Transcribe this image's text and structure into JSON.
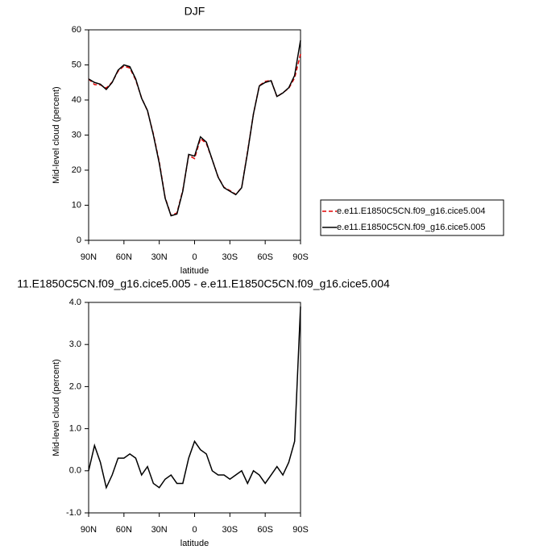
{
  "chart_data": [
    {
      "type": "line",
      "title": "DJF",
      "xlabel": "latitude",
      "ylabel": "Mid-level cloud (percent)",
      "x": [
        90,
        85,
        80,
        75,
        70,
        65,
        60,
        55,
        50,
        45,
        40,
        35,
        30,
        25,
        20,
        15,
        10,
        5,
        0,
        -5,
        -10,
        -15,
        -20,
        -25,
        -30,
        -35,
        -40,
        -45,
        -50,
        -55,
        -60,
        -65,
        -70,
        -75,
        -80,
        -85,
        -90
      ],
      "xlim": [
        90,
        -90
      ],
      "xticks": [
        {
          "value": 90,
          "label": "90N"
        },
        {
          "value": 60,
          "label": "60N"
        },
        {
          "value": 30,
          "label": "30N"
        },
        0,
        {
          "value": -30,
          "label": "30S"
        },
        {
          "value": -60,
          "label": "60S"
        },
        {
          "value": -90,
          "label": "90S"
        }
      ],
      "ylim": [
        0,
        60
      ],
      "yticks": [
        0,
        10,
        20,
        30,
        40,
        50,
        60
      ],
      "legend": "right",
      "series": [
        {
          "name": "e.e11.E1850C5CN.f09_g16.cice5.004",
          "color": "#e00000",
          "dash": true,
          "values": [
            46,
            44.4,
            44.3,
            43.4,
            45.1,
            48.2,
            49.7,
            49.1,
            45.7,
            40.6,
            36.9,
            30.3,
            22.4,
            12.2,
            7.1,
            7.8,
            14.3,
            24.2,
            23.3,
            29,
            27.6,
            23,
            18.1,
            15.1,
            14.2,
            13.1,
            15,
            25.3,
            36,
            44.1,
            45.3,
            45.6,
            40.9,
            42.1,
            43.3,
            46.3,
            53.1
          ]
        },
        {
          "name": "e.e11.E1850C5CN.f09_g16.cice5.005",
          "color": "#000000",
          "dash": false,
          "values": [
            46,
            45,
            44.5,
            43,
            45,
            48.5,
            50,
            49.5,
            46,
            40.5,
            37,
            30,
            22,
            12,
            7,
            7.5,
            14,
            24.5,
            24,
            29.5,
            28,
            23,
            18,
            15,
            14,
            13,
            15,
            25,
            36,
            44,
            45,
            45.5,
            41,
            42,
            43.5,
            47,
            57
          ]
        }
      ]
    },
    {
      "type": "line",
      "title": "11.E1850C5CN.f09_g16.cice5.005 - e.e11.E1850C5CN.f09_g16.cice5.004",
      "xlabel": "latitude",
      "ylabel": "Mid-level cloud (percent)",
      "x": [
        90,
        85,
        80,
        75,
        70,
        65,
        60,
        55,
        50,
        45,
        40,
        35,
        30,
        25,
        20,
        15,
        10,
        5,
        0,
        -5,
        -10,
        -15,
        -20,
        -25,
        -30,
        -35,
        -40,
        -45,
        -50,
        -55,
        -60,
        -65,
        -70,
        -75,
        -80,
        -85,
        -90
      ],
      "xlim": [
        90,
        -90
      ],
      "xticks": [
        {
          "value": 90,
          "label": "90N"
        },
        {
          "value": 60,
          "label": "60N"
        },
        {
          "value": 30,
          "label": "30N"
        },
        0,
        {
          "value": -30,
          "label": "30S"
        },
        {
          "value": -60,
          "label": "60S"
        },
        {
          "value": -90,
          "label": "90S"
        }
      ],
      "ylim": [
        -1,
        4
      ],
      "yticks": [
        {
          "value": -1,
          "label": "-1.0"
        },
        {
          "value": 0,
          "label": "0.0"
        },
        {
          "value": 1,
          "label": "1.0"
        },
        {
          "value": 2,
          "label": "2.0"
        },
        {
          "value": 3,
          "label": "3.0"
        },
        {
          "value": 4,
          "label": "4.0"
        }
      ],
      "series": [
        {
          "color": "#000000",
          "values": [
            0,
            0.6,
            0.2,
            -0.4,
            -0.1,
            0.3,
            0.3,
            0.4,
            0.3,
            -0.1,
            0.1,
            -0.3,
            -0.4,
            -0.2,
            -0.1,
            -0.3,
            -0.3,
            0.3,
            0.7,
            0.5,
            0.4,
            0,
            -0.1,
            -0.1,
            -0.2,
            -0.1,
            0,
            -0.3,
            0,
            -0.1,
            -0.3,
            -0.1,
            0.1,
            -0.1,
            0.2,
            0.7,
            3.9
          ]
        }
      ]
    }
  ]
}
